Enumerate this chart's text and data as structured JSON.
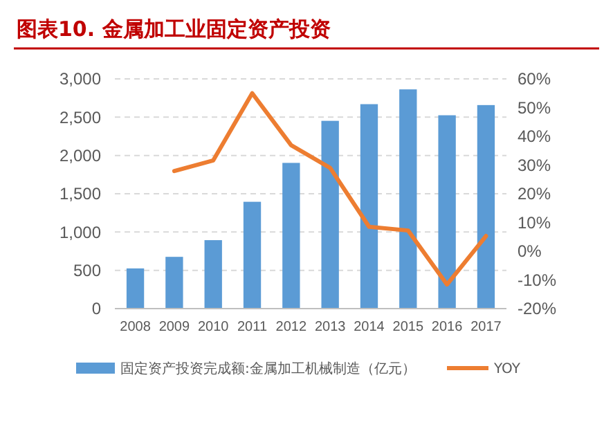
{
  "chart_data": {
    "type": "bar",
    "title": "图表10. 金属加工业固定资产投资",
    "categories": [
      "2008",
      "2009",
      "2010",
      "2011",
      "2012",
      "2013",
      "2014",
      "2015",
      "2016",
      "2017"
    ],
    "series": [
      {
        "name": "固定资产投资完成额:金属加工机械制造（亿元）",
        "color": "#5b9bd5",
        "values": [
          525,
          676,
          894,
          1395,
          1903,
          2452,
          2670,
          2863,
          2525,
          2658
        ]
      },
      {
        "name": "YOY",
        "type": "line",
        "axis": "y2",
        "color": "#ed7d31",
        "values": [
          null,
          27.9,
          31.6,
          55,
          36.9,
          29,
          8.5,
          7.2,
          -11.6,
          5.3
        ]
      }
    ],
    "ylim": [
      0,
      3000
    ],
    "yticks": [
      {
        "value": 0,
        "label": "0"
      },
      {
        "value": 500,
        "label": "500"
      },
      {
        "value": 1000,
        "label": "1,000"
      },
      {
        "value": 1500,
        "label": "1,500"
      },
      {
        "value": 2000,
        "label": "2,000"
      },
      {
        "value": 2500,
        "label": "2,500"
      },
      {
        "value": 3000,
        "label": "3,000"
      }
    ],
    "y2lim": [
      -20,
      60
    ],
    "y2ticks": [
      {
        "value": -20,
        "label": "-20%"
      },
      {
        "value": -10,
        "label": "-10%"
      },
      {
        "value": 0,
        "label": "0%"
      },
      {
        "value": 10,
        "label": "10%"
      },
      {
        "value": 20,
        "label": "20%"
      },
      {
        "value": 30,
        "label": "30%"
      },
      {
        "value": 40,
        "label": "40%"
      },
      {
        "value": 50,
        "label": "50%"
      },
      {
        "value": 60,
        "label": "60%"
      }
    ],
    "grid": "y",
    "legend": "bottom"
  }
}
